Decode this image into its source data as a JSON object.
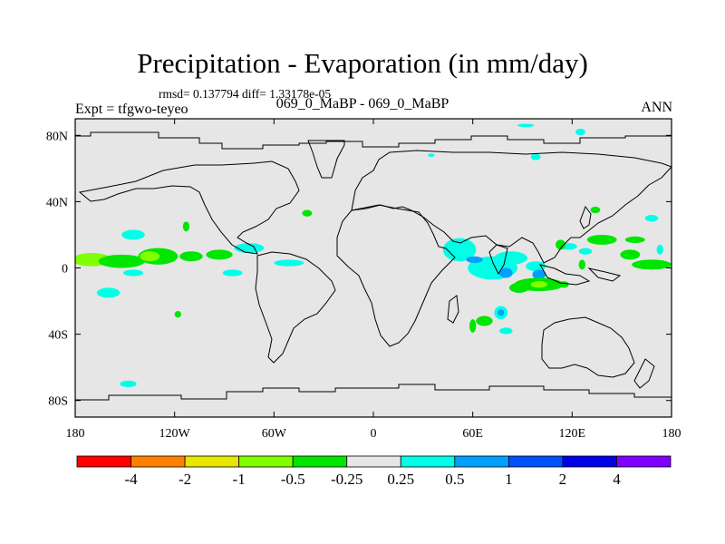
{
  "chart_data": {
    "type": "heatmap",
    "title": "Precipitation - Evaporation (in mm/day)",
    "stats": "rmsd= 0.137794 diff= 1.33178e-05",
    "subtitle_left": "Expt = tfgwo-teyeo",
    "subtitle_center": "069_0_MaBP - 069_0_MaBP",
    "subtitle_right": "ANN",
    "xlim": [
      -180,
      180
    ],
    "ylim": [
      -90,
      90
    ],
    "x_ticks": [
      {
        "value": -180,
        "label": "180"
      },
      {
        "value": -120,
        "label": "120W"
      },
      {
        "value": -60,
        "label": "60W"
      },
      {
        "value": 0,
        "label": "0"
      },
      {
        "value": 60,
        "label": "60E"
      },
      {
        "value": 120,
        "label": "120E"
      },
      {
        "value": 180,
        "label": "180"
      }
    ],
    "y_ticks": [
      {
        "value": 80,
        "label": "80N"
      },
      {
        "value": 40,
        "label": "40N"
      },
      {
        "value": 0,
        "label": "0"
      },
      {
        "value": -40,
        "label": "40S"
      },
      {
        "value": -80,
        "label": "80S"
      }
    ],
    "colorbar": {
      "colors": [
        "#ff0000",
        "#ff8000",
        "#e6e600",
        "#80ff00",
        "#00e600",
        "#e6e6e6",
        "#00ffe6",
        "#00a0ff",
        "#0050ff",
        "#0000e6",
        "#8000ff"
      ],
      "labels": [
        "-4",
        "-2",
        "-1",
        "-0.5",
        "-0.25",
        "0.25",
        "0.5",
        "1",
        "2",
        "4"
      ]
    },
    "anomalies": [
      {
        "lon": -170,
        "lat": 5,
        "rx": 12,
        "ry": 4,
        "level": "-0.5"
      },
      {
        "lon": -152,
        "lat": 4,
        "rx": 14,
        "ry": 4,
        "level": "-0.25"
      },
      {
        "lon": -130,
        "lat": 7,
        "rx": 12,
        "ry": 5,
        "level": "-0.25"
      },
      {
        "lon": -110,
        "lat": 7,
        "rx": 7,
        "ry": 3,
        "level": "-0.25"
      },
      {
        "lon": -93,
        "lat": 8,
        "rx": 8,
        "ry": 3,
        "level": "-0.25"
      },
      {
        "lon": -135,
        "lat": 7,
        "rx": 6,
        "ry": 3,
        "level": "-0.5"
      },
      {
        "lon": -145,
        "lat": 20,
        "rx": 7,
        "ry": 3,
        "level": "0.25"
      },
      {
        "lon": -113,
        "lat": 25,
        "rx": 2,
        "ry": 3,
        "level": "-0.25"
      },
      {
        "lon": -75,
        "lat": 12,
        "rx": 9,
        "ry": 3,
        "level": "0.25"
      },
      {
        "lon": -160,
        "lat": -15,
        "rx": 7,
        "ry": 3,
        "level": "0.25"
      },
      {
        "lon": -145,
        "lat": -3,
        "rx": 6,
        "ry": 2,
        "level": "0.25"
      },
      {
        "lon": -85,
        "lat": -3,
        "rx": 6,
        "ry": 2,
        "level": "0.25"
      },
      {
        "lon": -118,
        "lat": -28,
        "rx": 2,
        "ry": 2,
        "level": "-0.25"
      },
      {
        "lon": -148,
        "lat": -70,
        "rx": 5,
        "ry": 2,
        "level": "0.25"
      },
      {
        "lon": -51,
        "lat": 3,
        "rx": 9,
        "ry": 2,
        "level": "0.25"
      },
      {
        "lon": -40,
        "lat": 33,
        "rx": 3,
        "ry": 2,
        "level": "-0.25"
      },
      {
        "lon": 52,
        "lat": 11,
        "rx": 10,
        "ry": 7,
        "level": "0.25"
      },
      {
        "lon": 72,
        "lat": 0,
        "rx": 15,
        "ry": 7,
        "level": "0.25"
      },
      {
        "lon": 83,
        "lat": 6,
        "rx": 10,
        "ry": 4,
        "level": "0.25"
      },
      {
        "lon": 80,
        "lat": -3,
        "rx": 4,
        "ry": 3,
        "level": "0.5"
      },
      {
        "lon": 61,
        "lat": 5,
        "rx": 5,
        "ry": 2,
        "level": "0.5"
      },
      {
        "lon": 98,
        "lat": 1,
        "rx": 6,
        "ry": 3,
        "level": "0.25"
      },
      {
        "lon": 100,
        "lat": -4,
        "rx": 4,
        "ry": 3,
        "level": "0.5"
      },
      {
        "lon": 100,
        "lat": -10,
        "rx": 15,
        "ry": 4,
        "level": "-0.25"
      },
      {
        "lon": 88,
        "lat": -12,
        "rx": 6,
        "ry": 3,
        "level": "-0.25"
      },
      {
        "lon": 100,
        "lat": -10,
        "rx": 5,
        "ry": 2,
        "level": "-0.5"
      },
      {
        "lon": 77,
        "lat": -27,
        "rx": 4,
        "ry": 4,
        "level": "0.25"
      },
      {
        "lon": 77,
        "lat": -27,
        "rx": 2,
        "ry": 2,
        "level": "0.5"
      },
      {
        "lon": 67,
        "lat": -32,
        "rx": 5,
        "ry": 3,
        "level": "-0.25"
      },
      {
        "lon": 60,
        "lat": -35,
        "rx": 2,
        "ry": 4,
        "level": "-0.25"
      },
      {
        "lon": 80,
        "lat": -38,
        "rx": 4,
        "ry": 2,
        "level": "0.25"
      },
      {
        "lon": 118,
        "lat": 13,
        "rx": 5,
        "ry": 2,
        "level": "0.25"
      },
      {
        "lon": 113,
        "lat": 14,
        "rx": 3,
        "ry": 3,
        "level": "-0.25"
      },
      {
        "lon": 138,
        "lat": 17,
        "rx": 9,
        "ry": 3,
        "level": "-0.25"
      },
      {
        "lon": 158,
        "lat": 17,
        "rx": 6,
        "ry": 2,
        "level": "-0.25"
      },
      {
        "lon": 128,
        "lat": 10,
        "rx": 4,
        "ry": 2,
        "level": "0.25"
      },
      {
        "lon": 168,
        "lat": 2,
        "rx": 12,
        "ry": 3,
        "level": "-0.25"
      },
      {
        "lon": 155,
        "lat": 8,
        "rx": 6,
        "ry": 3,
        "level": "-0.25"
      },
      {
        "lon": 134,
        "lat": 35,
        "rx": 3,
        "ry": 2,
        "level": "-0.25"
      },
      {
        "lon": 168,
        "lat": 30,
        "rx": 4,
        "ry": 2,
        "level": "0.25"
      },
      {
        "lon": 126,
        "lat": 2,
        "rx": 2,
        "ry": 3,
        "level": "-0.25"
      },
      {
        "lon": 115,
        "lat": -10,
        "rx": 3,
        "ry": 2,
        "level": "-0.25"
      },
      {
        "lon": 173,
        "lat": 11,
        "rx": 2,
        "ry": 3,
        "level": "0.25"
      },
      {
        "lon": 98,
        "lat": 67,
        "rx": 3,
        "ry": 2,
        "level": "0.25"
      },
      {
        "lon": 35,
        "lat": 68,
        "rx": 2,
        "ry": 1,
        "level": "0.25"
      },
      {
        "lon": 125,
        "lat": 82,
        "rx": 3,
        "ry": 2,
        "level": "0.25"
      },
      {
        "lon": 92,
        "lat": 86,
        "rx": 5,
        "ry": 1,
        "level": "0.25"
      }
    ]
  }
}
